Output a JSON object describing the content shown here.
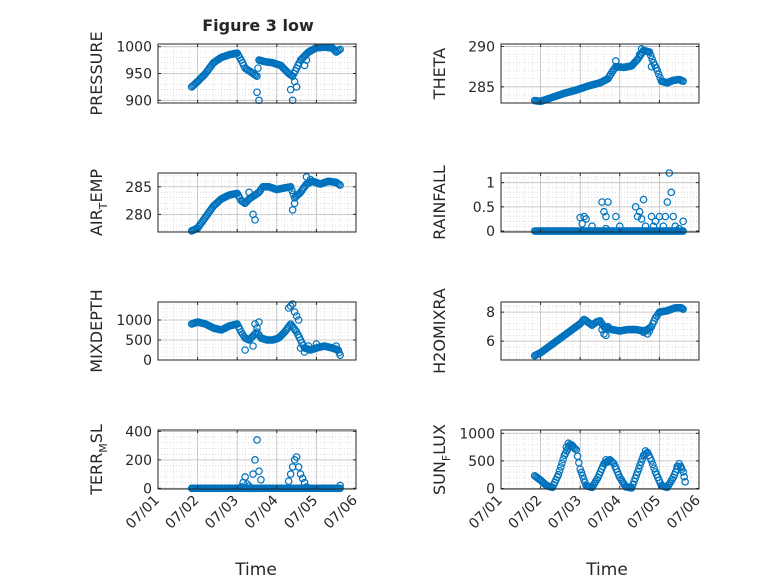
{
  "figure": {
    "title": "Figure 3 low",
    "xlabel": "Time",
    "marker_color": "#0072BD",
    "x_tick_labels": [
      "07/01",
      "07/02",
      "07/03",
      "07/04",
      "07/05",
      "07/06"
    ]
  },
  "chart_data": [
    {
      "type": "scatter",
      "ylabel": "PRESSURE",
      "ylim": [
        895,
        1005
      ],
      "yticks": [
        900,
        950,
        1000
      ],
      "x_date_range": [
        "07/01",
        "07/06"
      ],
      "x": [],
      "values": [],
      "keypoints": [
        [
          1.85,
          925
        ],
        [
          2.0,
          935
        ],
        [
          2.2,
          950
        ],
        [
          2.4,
          970
        ],
        [
          2.6,
          980
        ],
        [
          2.8,
          985
        ],
        [
          3.0,
          988
        ],
        [
          3.1,
          975
        ],
        [
          3.2,
          960
        ],
        [
          3.3,
          955
        ],
        [
          3.4,
          950
        ],
        [
          3.5,
          945
        ],
        [
          3.55,
          975
        ],
        [
          3.7,
          972
        ],
        [
          3.9,
          970
        ],
        [
          4.1,
          965
        ],
        [
          4.3,
          950
        ],
        [
          4.4,
          945
        ],
        [
          4.5,
          960
        ],
        [
          4.6,
          975
        ],
        [
          4.8,
          990
        ],
        [
          5.0,
          998
        ],
        [
          5.2,
          999
        ],
        [
          5.4,
          998
        ],
        [
          5.5,
          990
        ],
        [
          5.6,
          995
        ]
      ],
      "extra_points": [
        [
          3.5,
          915
        ],
        [
          3.55,
          900
        ],
        [
          4.35,
          920
        ],
        [
          4.4,
          900
        ],
        [
          4.5,
          925
        ],
        [
          4.45,
          935
        ],
        [
          4.7,
          965
        ],
        [
          4.75,
          975
        ]
      ]
    },
    {
      "type": "scatter",
      "ylabel": "THETA",
      "ylim": [
        283,
        290.3
      ],
      "yticks": [
        285,
        290
      ],
      "x_date_range": [
        "07/01",
        "07/06"
      ],
      "x": [],
      "values": [],
      "keypoints": [
        [
          1.85,
          283.3
        ],
        [
          2.0,
          283.2
        ],
        [
          2.3,
          283.7
        ],
        [
          2.6,
          284.2
        ],
        [
          2.9,
          284.6
        ],
        [
          3.2,
          285.1
        ],
        [
          3.5,
          285.5
        ],
        [
          3.7,
          286.0
        ],
        [
          3.8,
          286.8
        ],
        [
          3.9,
          287.5
        ],
        [
          4.1,
          287.4
        ],
        [
          4.3,
          287.6
        ],
        [
          4.45,
          288.4
        ],
        [
          4.6,
          289.5
        ],
        [
          4.75,
          289.3
        ],
        [
          4.85,
          288.0
        ],
        [
          4.95,
          287.0
        ],
        [
          5.05,
          285.7
        ],
        [
          5.2,
          285.5
        ],
        [
          5.35,
          285.8
        ],
        [
          5.5,
          285.9
        ],
        [
          5.6,
          285.7
        ]
      ],
      "extra_points": [
        [
          3.9,
          288.2
        ],
        [
          4.5,
          289.0
        ],
        [
          4.55,
          289.7
        ],
        [
          4.8,
          287.5
        ]
      ]
    },
    {
      "type": "scatter",
      "ylabel": "AIR_TEMP",
      "ylim": [
        276.8,
        287.5
      ],
      "yticks": [
        280,
        285
      ],
      "x_date_range": [
        "07/01",
        "07/06"
      ],
      "x": [],
      "values": [],
      "keypoints": [
        [
          1.85,
          277.0
        ],
        [
          2.0,
          277.5
        ],
        [
          2.2,
          279.5
        ],
        [
          2.4,
          281.5
        ],
        [
          2.6,
          282.8
        ],
        [
          2.8,
          283.5
        ],
        [
          3.0,
          283.8
        ],
        [
          3.1,
          282.5
        ],
        [
          3.2,
          282.0
        ],
        [
          3.3,
          282.8
        ],
        [
          3.45,
          283.5
        ],
        [
          3.55,
          284.0
        ],
        [
          3.65,
          285.0
        ],
        [
          3.8,
          285.0
        ],
        [
          4.0,
          284.5
        ],
        [
          4.2,
          284.8
        ],
        [
          4.35,
          285.0
        ],
        [
          4.45,
          283.0
        ],
        [
          4.6,
          284.0
        ],
        [
          4.75,
          285.5
        ],
        [
          4.9,
          286.0
        ],
        [
          5.1,
          285.5
        ],
        [
          5.3,
          286.0
        ],
        [
          5.5,
          285.8
        ],
        [
          5.6,
          285.3
        ]
      ],
      "extra_points": [
        [
          3.4,
          280.0
        ],
        [
          3.45,
          279.0
        ],
        [
          3.3,
          284.0
        ],
        [
          4.4,
          280.8
        ],
        [
          4.45,
          282.0
        ],
        [
          4.75,
          286.8
        ],
        [
          4.85,
          286.3
        ]
      ]
    },
    {
      "type": "scatter",
      "ylabel": "RAINFALL",
      "ylim": [
        -0.02,
        1.2
      ],
      "yticks": [
        0,
        0.5,
        1
      ],
      "x_date_range": [
        "07/01",
        "07/06"
      ],
      "x": [],
      "values": [],
      "keypoints": [
        [
          1.85,
          0
        ],
        [
          2.2,
          0
        ],
        [
          2.5,
          0
        ],
        [
          2.8,
          0
        ],
        [
          3.1,
          0
        ],
        [
          3.4,
          0
        ],
        [
          3.7,
          0
        ],
        [
          4.0,
          0
        ],
        [
          4.3,
          0
        ],
        [
          4.6,
          0
        ],
        [
          4.9,
          0
        ],
        [
          5.2,
          0
        ],
        [
          5.5,
          0
        ],
        [
          5.6,
          0
        ]
      ],
      "extra_points": [
        [
          3.0,
          0.28
        ],
        [
          3.05,
          0.15
        ],
        [
          3.1,
          0.3
        ],
        [
          3.15,
          0.25
        ],
        [
          3.3,
          0.1
        ],
        [
          3.55,
          0.6
        ],
        [
          3.6,
          0.4
        ],
        [
          3.65,
          0.3
        ],
        [
          3.7,
          0.6
        ],
        [
          3.65,
          0.05
        ],
        [
          3.9,
          0.3
        ],
        [
          4.0,
          0.1
        ],
        [
          4.4,
          0.5
        ],
        [
          4.45,
          0.3
        ],
        [
          4.5,
          0.4
        ],
        [
          4.55,
          0.25
        ],
        [
          4.6,
          0.65
        ],
        [
          4.65,
          0.1
        ],
        [
          4.8,
          0.3
        ],
        [
          4.85,
          0.1
        ],
        [
          4.9,
          0.2
        ],
        [
          5.0,
          0.3
        ],
        [
          5.1,
          0.1
        ],
        [
          5.15,
          0.3
        ],
        [
          5.2,
          0.6
        ],
        [
          5.25,
          1.2
        ],
        [
          5.3,
          0.8
        ],
        [
          5.35,
          0.3
        ],
        [
          5.4,
          0.1
        ],
        [
          5.5,
          0.05
        ],
        [
          5.6,
          0.2
        ]
      ]
    },
    {
      "type": "scatter",
      "ylabel": "MIXDEPTH",
      "ylim": [
        0,
        1450
      ],
      "yticks": [
        0,
        500,
        1000
      ],
      "x_date_range": [
        "07/01",
        "07/06"
      ],
      "x": [],
      "values": [],
      "keypoints": [
        [
          1.85,
          900
        ],
        [
          2.0,
          950
        ],
        [
          2.2,
          900
        ],
        [
          2.4,
          800
        ],
        [
          2.6,
          750
        ],
        [
          2.8,
          850
        ],
        [
          3.0,
          900
        ],
        [
          3.1,
          700
        ],
        [
          3.2,
          550
        ],
        [
          3.3,
          500
        ],
        [
          3.4,
          600
        ],
        [
          3.5,
          700
        ],
        [
          3.6,
          550
        ],
        [
          3.75,
          500
        ],
        [
          3.9,
          500
        ],
        [
          4.05,
          550
        ],
        [
          4.2,
          700
        ],
        [
          4.35,
          900
        ],
        [
          4.5,
          700
        ],
        [
          4.6,
          500
        ],
        [
          4.7,
          300
        ],
        [
          4.85,
          250
        ],
        [
          5.0,
          300
        ],
        [
          5.2,
          350
        ],
        [
          5.4,
          300
        ],
        [
          5.55,
          250
        ],
        [
          5.6,
          120
        ]
      ],
      "extra_points": [
        [
          3.2,
          250
        ],
        [
          3.4,
          350
        ],
        [
          3.45,
          900
        ],
        [
          3.5,
          800
        ],
        [
          3.55,
          950
        ],
        [
          4.3,
          1300
        ],
        [
          4.35,
          1350
        ],
        [
          4.4,
          1400
        ],
        [
          4.45,
          1200
        ],
        [
          4.5,
          1100
        ],
        [
          4.55,
          1000
        ],
        [
          4.6,
          300
        ],
        [
          4.7,
          200
        ],
        [
          4.8,
          350
        ],
        [
          5.0,
          400
        ],
        [
          5.5,
          350
        ]
      ]
    },
    {
      "type": "scatter",
      "ylabel": "H2OMIXRA",
      "ylim": [
        4.7,
        8.7
      ],
      "yticks": [
        6,
        8
      ],
      "x_date_range": [
        "07/01",
        "07/06"
      ],
      "x": [],
      "values": [],
      "keypoints": [
        [
          1.85,
          5.0
        ],
        [
          2.0,
          5.2
        ],
        [
          2.2,
          5.6
        ],
        [
          2.4,
          6.0
        ],
        [
          2.6,
          6.4
        ],
        [
          2.8,
          6.8
        ],
        [
          3.0,
          7.2
        ],
        [
          3.1,
          7.5
        ],
        [
          3.2,
          7.3
        ],
        [
          3.3,
          7.1
        ],
        [
          3.4,
          7.3
        ],
        [
          3.5,
          7.4
        ],
        [
          3.6,
          7.0
        ],
        [
          3.8,
          6.8
        ],
        [
          4.0,
          6.7
        ],
        [
          4.2,
          6.8
        ],
        [
          4.4,
          6.8
        ],
        [
          4.6,
          6.7
        ],
        [
          4.7,
          6.8
        ],
        [
          4.8,
          7.0
        ],
        [
          4.9,
          7.6
        ],
        [
          5.0,
          8.0
        ],
        [
          5.2,
          8.1
        ],
        [
          5.4,
          8.3
        ],
        [
          5.55,
          8.3
        ],
        [
          5.6,
          8.2
        ]
      ],
      "extra_points": [
        [
          3.55,
          6.8
        ],
        [
          3.6,
          6.5
        ],
        [
          3.65,
          6.4
        ],
        [
          3.7,
          7.0
        ],
        [
          4.6,
          6.6
        ],
        [
          4.7,
          6.5
        ],
        [
          4.75,
          6.7
        ]
      ]
    },
    {
      "type": "scatter",
      "ylabel": "TERR_MSL",
      "ylim": [
        -5,
        410
      ],
      "yticks": [
        0,
        200,
        400
      ],
      "x_date_range": [
        "07/01",
        "07/06"
      ],
      "x": [],
      "values": [],
      "keypoints": [
        [
          1.85,
          0
        ],
        [
          2.2,
          0
        ],
        [
          2.5,
          0
        ],
        [
          2.8,
          0
        ],
        [
          3.1,
          0
        ],
        [
          3.4,
          0
        ],
        [
          3.7,
          0
        ],
        [
          4.0,
          0
        ],
        [
          4.3,
          0
        ],
        [
          4.6,
          0
        ],
        [
          4.9,
          0
        ],
        [
          5.2,
          0
        ],
        [
          5.5,
          0
        ],
        [
          5.6,
          0
        ]
      ],
      "extra_points": [
        [
          3.1,
          10
        ],
        [
          3.15,
          40
        ],
        [
          3.2,
          80
        ],
        [
          3.25,
          30
        ],
        [
          3.3,
          15
        ],
        [
          3.4,
          100
        ],
        [
          3.45,
          200
        ],
        [
          3.5,
          340
        ],
        [
          3.55,
          120
        ],
        [
          3.6,
          60
        ],
        [
          4.3,
          50
        ],
        [
          4.35,
          100
        ],
        [
          4.4,
          150
        ],
        [
          4.45,
          200
        ],
        [
          4.5,
          220
        ],
        [
          4.55,
          150
        ],
        [
          4.6,
          100
        ],
        [
          4.65,
          70
        ],
        [
          4.7,
          40
        ],
        [
          4.75,
          10
        ],
        [
          5.6,
          20
        ]
      ]
    },
    {
      "type": "scatter",
      "ylabel": "SUN_FLUX",
      "ylim": [
        -10,
        1060
      ],
      "yticks": [
        0,
        500,
        1000
      ],
      "x_date_range": [
        "07/01",
        "07/06"
      ],
      "x": [],
      "values": [],
      "keypoints": [
        [
          1.85,
          230
        ],
        [
          2.0,
          150
        ],
        [
          2.15,
          50
        ],
        [
          2.3,
          20
        ],
        [
          2.45,
          250
        ],
        [
          2.6,
          600
        ],
        [
          2.75,
          800
        ],
        [
          2.9,
          700
        ],
        [
          3.0,
          350
        ],
        [
          3.15,
          50
        ],
        [
          3.3,
          20
        ],
        [
          3.45,
          200
        ],
        [
          3.6,
          450
        ],
        [
          3.75,
          520
        ],
        [
          3.85,
          450
        ],
        [
          4.0,
          200
        ],
        [
          4.15,
          30
        ],
        [
          4.3,
          10
        ],
        [
          4.45,
          300
        ],
        [
          4.6,
          600
        ],
        [
          4.7,
          650
        ],
        [
          4.8,
          500
        ],
        [
          4.9,
          300
        ],
        [
          5.05,
          50
        ],
        [
          5.2,
          20
        ],
        [
          5.35,
          200
        ],
        [
          5.5,
          450
        ],
        [
          5.6,
          300
        ],
        [
          5.65,
          120
        ]
      ],
      "extra_points": [
        [
          2.65,
          750
        ],
        [
          2.7,
          820
        ],
        [
          2.8,
          780
        ],
        [
          3.65,
          520
        ],
        [
          3.7,
          480
        ],
        [
          4.65,
          680
        ],
        [
          5.45,
          400
        ],
        [
          5.55,
          380
        ]
      ]
    }
  ]
}
